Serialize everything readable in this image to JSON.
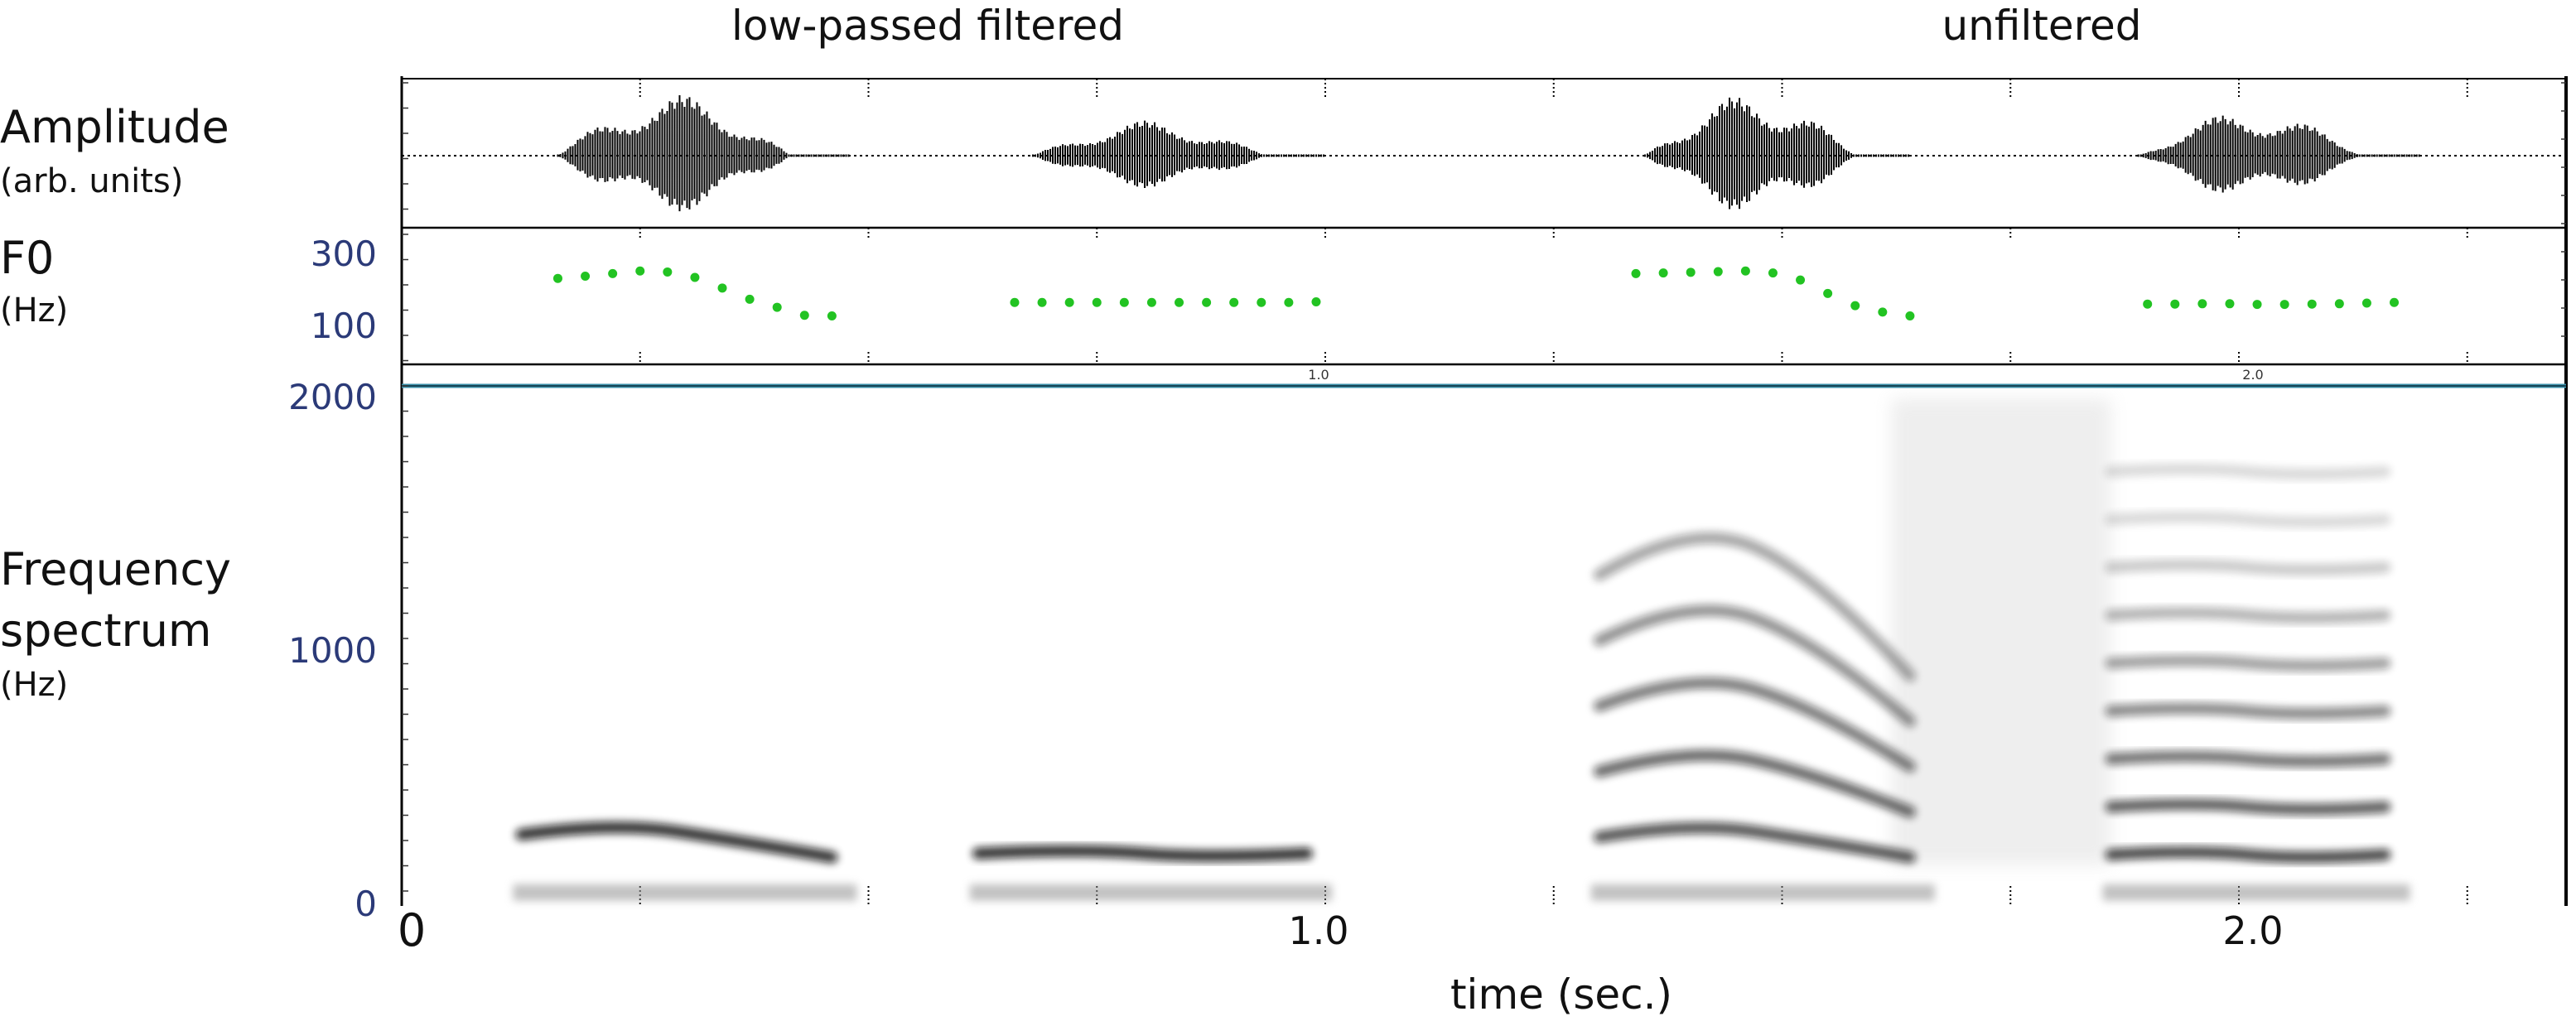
{
  "section_titles": {
    "left": "low-passed filtered",
    "right": "unfiltered"
  },
  "row_labels": {
    "amplitude": {
      "label": "Amplitude",
      "sublabel": "(arb. units)"
    },
    "f0": {
      "label": "F0",
      "sublabel": "(Hz)"
    },
    "spectrum": {
      "label_line1": "Frequency",
      "label_line2": "spectrum",
      "sublabel": "(Hz)"
    }
  },
  "colors": {
    "f0_dots": "#22c322",
    "tick_labels": "#2b3a78",
    "divider_line": "#3a8fa8",
    "waveform": "#000000"
  },
  "chart_data": [
    {
      "type": "line",
      "panel": "amplitude",
      "ylabel": "Amplitude",
      "x_range": [
        0,
        2.35
      ],
      "y_range": [
        -1,
        1
      ],
      "segments": [
        {
          "condition": "low-passed filtered",
          "start": 0.16,
          "end": 0.48,
          "envelope_peak": 0.95
        },
        {
          "condition": "low-passed filtered",
          "start": 0.68,
          "end": 1.0,
          "envelope_peak": 0.55
        },
        {
          "condition": "unfiltered",
          "start": 1.35,
          "end": 1.64,
          "envelope_peak": 0.95
        },
        {
          "condition": "unfiltered",
          "start": 1.89,
          "end": 2.2,
          "envelope_peak": 0.7
        }
      ]
    },
    {
      "type": "scatter",
      "panel": "f0",
      "ylabel": "F0",
      "y_ticks": [
        "300",
        "100"
      ],
      "y_range": [
        0,
        400
      ],
      "series": [
        {
          "condition": "low-passed filtered",
          "x": [
            0.16,
            0.19,
            0.22,
            0.25,
            0.28,
            0.31,
            0.34,
            0.37,
            0.4,
            0.43,
            0.46
          ],
          "y": [
            255,
            262,
            270,
            278,
            275,
            258,
            225,
            190,
            165,
            140,
            138
          ]
        },
        {
          "condition": "low-passed filtered",
          "x": [
            0.66,
            0.69,
            0.72,
            0.75,
            0.78,
            0.81,
            0.84,
            0.87,
            0.9,
            0.93,
            0.96,
            0.99
          ],
          "y": [
            180,
            180,
            180,
            180,
            180,
            180,
            180,
            180,
            180,
            180,
            180,
            182
          ]
        },
        {
          "condition": "unfiltered",
          "x": [
            1.34,
            1.37,
            1.4,
            1.43,
            1.46,
            1.49,
            1.52,
            1.55,
            1.58,
            1.61,
            1.64
          ],
          "y": [
            270,
            272,
            274,
            276,
            278,
            272,
            250,
            208,
            170,
            150,
            138
          ]
        },
        {
          "condition": "unfiltered",
          "x": [
            1.9,
            1.93,
            1.96,
            1.99,
            2.02,
            2.05,
            2.08,
            2.11,
            2.14,
            2.17
          ],
          "y": [
            175,
            175,
            176,
            176,
            174,
            174,
            175,
            176,
            178,
            180
          ]
        }
      ]
    },
    {
      "type": "heatmap",
      "panel": "spectrum",
      "ylabel": "Frequency spectrum",
      "xlabel": "time (sec.)",
      "y_ticks": [
        "2000",
        "1000",
        "0"
      ],
      "y_range": [
        0,
        2050
      ],
      "x_ticks": [
        "0",
        "1.0",
        "2.0"
      ],
      "x_tick_values": [
        0,
        1.0,
        2.0
      ],
      "x_range": [
        0,
        2.35
      ],
      "harmonic_bands": [
        {
          "condition": "low-passed filtered",
          "start": 0.12,
          "end": 0.46,
          "freqs_start": [
            270
          ],
          "freqs_peak": [
            300
          ],
          "freqs_end": [
            180
          ],
          "darkness": 0.85
        },
        {
          "condition": "low-passed filtered",
          "start": 0.62,
          "end": 0.98,
          "freqs_start": [
            195
          ],
          "freqs_peak": [
            195
          ],
          "freqs_end": [
            195
          ],
          "darkness": 0.85
        },
        {
          "condition": "unfiltered",
          "start": 1.3,
          "end": 1.64,
          "freqs_start": [
            260,
            520,
            780,
            1040,
            1300
          ],
          "freqs_peak": [
            300,
            600,
            900,
            1200,
            1500
          ],
          "freqs_end": [
            180,
            360,
            540,
            720,
            900
          ],
          "darkness": 0.7
        },
        {
          "condition": "unfiltered",
          "start": 1.86,
          "end": 2.16,
          "freqs_start": [
            190,
            380,
            570,
            760,
            950,
            1140,
            1330,
            1520,
            1710
          ],
          "freqs_peak": [
            190,
            380,
            570,
            760,
            950,
            1140,
            1330,
            1520,
            1710
          ],
          "freqs_end": [
            190,
            380,
            570,
            760,
            950,
            1140,
            1330,
            1520,
            1710
          ],
          "darkness": 0.75
        }
      ],
      "noise_region": {
        "start": 1.62,
        "end": 1.86,
        "freq_min": 150,
        "freq_max": 2000
      }
    }
  ],
  "small_ticks": {
    "one": "1.0",
    "two": "2.0"
  }
}
